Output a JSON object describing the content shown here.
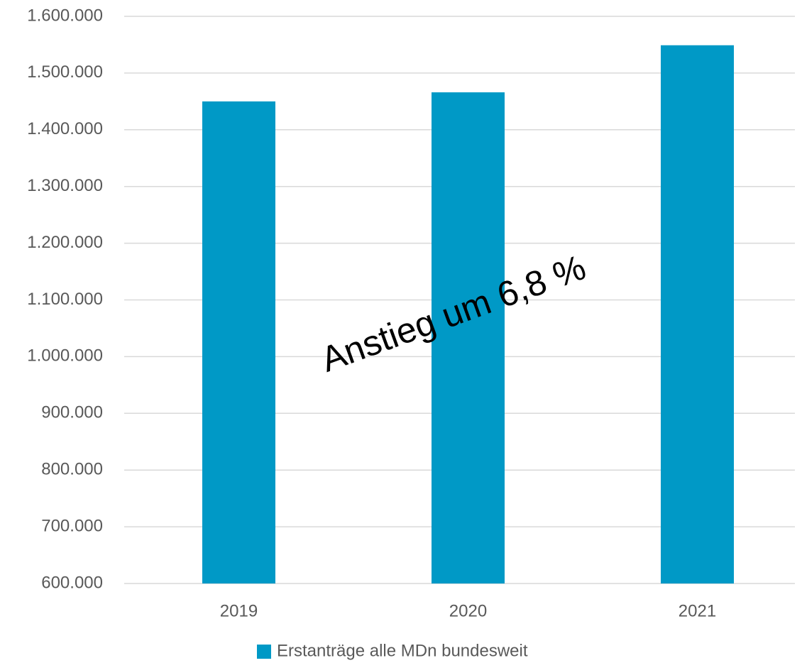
{
  "chart_data": {
    "type": "bar",
    "categories": [
      "2019",
      "2020",
      "2021"
    ],
    "series": [
      {
        "name": "Erstanträge alle MDn bundesweit",
        "color": "#0099c6",
        "values": [
          1450000,
          1466000,
          1549000
        ]
      }
    ],
    "ylim": [
      600000,
      1600000
    ],
    "yticks": [
      {
        "value": 600000,
        "label": "600.000"
      },
      {
        "value": 700000,
        "label": "700.000"
      },
      {
        "value": 800000,
        "label": "800.000"
      },
      {
        "value": 900000,
        "label": "900.000"
      },
      {
        "value": 1000000,
        "label": "1.000.000"
      },
      {
        "value": 1100000,
        "label": "1.100.000"
      },
      {
        "value": 1200000,
        "label": "1.200.000"
      },
      {
        "value": 1300000,
        "label": "1.300.000"
      },
      {
        "value": 1400000,
        "label": "1.400.000"
      },
      {
        "value": 1500000,
        "label": "1.500.000"
      },
      {
        "value": 1600000,
        "label": "1.600.000"
      }
    ],
    "grid": true,
    "legend": "bottom",
    "annotation": "Anstieg um 6,8 %"
  }
}
